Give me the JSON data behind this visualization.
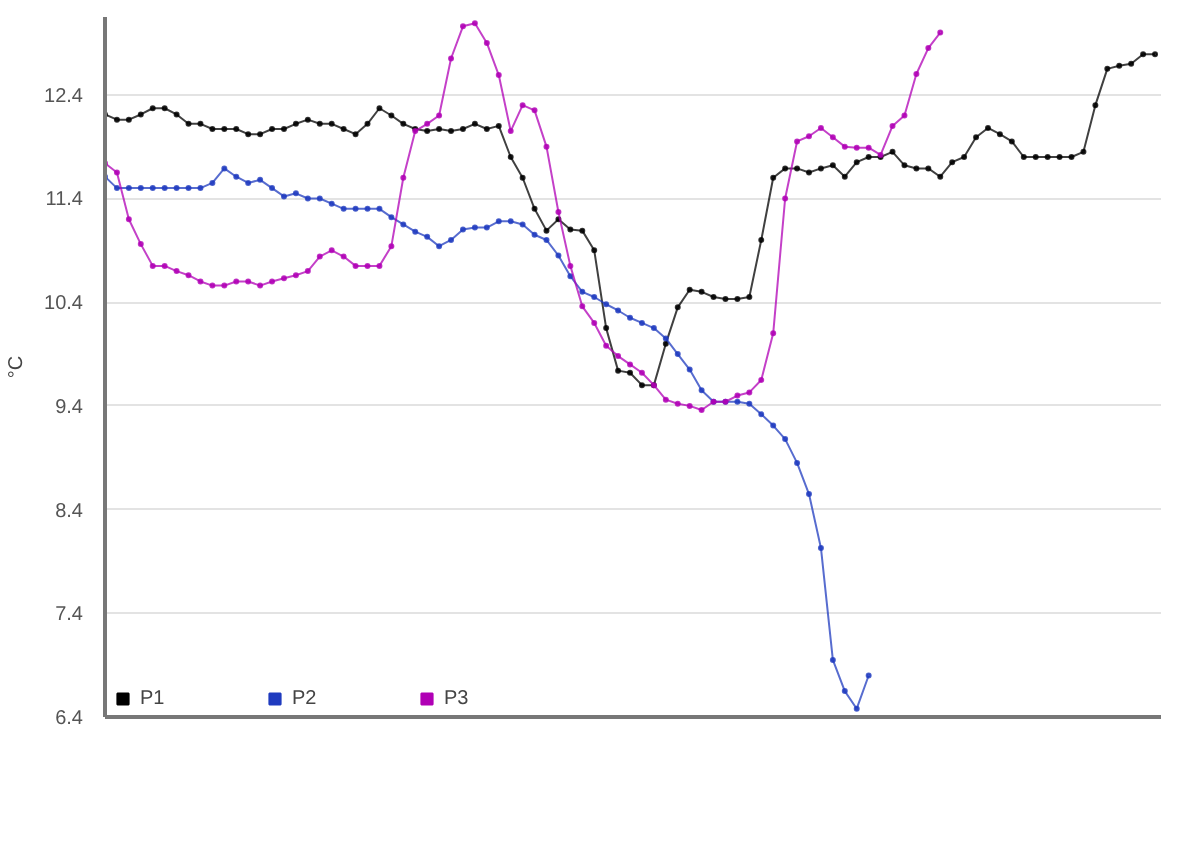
{
  "chart_data": {
    "type": "line",
    "ylabel": "°C",
    "categories": [
      null,
      null,
      null,
      null,
      null,
      null,
      null,
      null,
      null,
      null,
      null,
      null,
      null,
      null,
      null,
      null,
      null,
      null,
      null,
      null,
      null,
      null,
      null,
      null,
      null,
      null,
      null,
      null,
      null,
      null,
      null,
      null,
      null,
      null,
      null,
      null,
      null,
      null,
      null,
      null,
      null,
      null,
      null,
      null,
      null,
      null,
      null,
      null,
      null,
      null,
      null,
      null,
      null,
      null,
      null,
      null,
      null,
      null,
      null,
      null,
      null,
      null,
      null,
      null,
      null,
      null,
      null,
      null,
      null,
      null,
      null,
      null,
      null,
      null,
      null,
      null,
      null,
      null,
      null,
      null,
      null,
      null,
      null,
      null,
      null,
      null,
      null,
      null,
      null
    ],
    "series": [
      {
        "name": "P1",
        "color": "#000000",
        "values": [
          12.21,
          12.16,
          12.16,
          12.21,
          12.27,
          12.27,
          12.21,
          12.12,
          12.12,
          12.07,
          12.07,
          12.07,
          12.02,
          12.02,
          12.07,
          12.07,
          12.12,
          12.16,
          12.12,
          12.12,
          12.07,
          12.02,
          12.12,
          12.27,
          12.2,
          12.12,
          12.07,
          12.05,
          12.07,
          12.05,
          12.07,
          12.12,
          12.07,
          12.1,
          11.8,
          11.6,
          11.3,
          11.09,
          11.2,
          11.1,
          11.09,
          10.9,
          10.15,
          9.74,
          9.72,
          9.6,
          9.6,
          10.0,
          10.35,
          10.52,
          10.5,
          10.45,
          10.43,
          10.43,
          10.45,
          11.0,
          11.6,
          11.69,
          11.69,
          11.65,
          11.69,
          11.72,
          11.61,
          11.75,
          11.8,
          11.8,
          11.85,
          11.72,
          11.69,
          11.69,
          11.61,
          11.75,
          11.8,
          11.99,
          12.08,
          12.02,
          11.95,
          11.8,
          11.8,
          11.8,
          11.8,
          11.8,
          11.85,
          12.3,
          12.65,
          12.68,
          12.7,
          12.79,
          12.79
        ]
      },
      {
        "name": "P2",
        "color": "#1f3bbf",
        "values": [
          11.61,
          11.5,
          11.5,
          11.5,
          11.5,
          11.5,
          11.5,
          11.5,
          11.5,
          11.55,
          11.69,
          11.61,
          11.55,
          11.58,
          11.5,
          11.42,
          11.45,
          11.4,
          11.4,
          11.35,
          11.3,
          11.3,
          11.3,
          11.3,
          11.22,
          11.15,
          11.08,
          11.03,
          10.94,
          11.0,
          11.1,
          11.12,
          11.12,
          11.18,
          11.18,
          11.15,
          11.05,
          11.0,
          10.85,
          10.65,
          10.5,
          10.45,
          10.38,
          10.32,
          10.25,
          10.2,
          10.15,
          10.05,
          9.9,
          9.75,
          9.55,
          9.44,
          9.44,
          9.44,
          9.42,
          9.32,
          9.21,
          9.08,
          8.85,
          8.55,
          8.03,
          6.95,
          6.65,
          6.48,
          6.8,
          null,
          null,
          null,
          null,
          null,
          null,
          null,
          null,
          null,
          null,
          null,
          null,
          null,
          null,
          null,
          null,
          null,
          null,
          null,
          null,
          null,
          null,
          null,
          null
        ]
      },
      {
        "name": "P3",
        "color": "#b000b5",
        "values": [
          11.74,
          11.65,
          11.2,
          10.96,
          10.75,
          10.75,
          10.7,
          10.66,
          10.6,
          10.56,
          10.56,
          10.6,
          10.6,
          10.56,
          10.6,
          10.63,
          10.66,
          10.7,
          10.84,
          10.9,
          10.84,
          10.75,
          10.75,
          10.75,
          10.94,
          11.6,
          12.05,
          12.12,
          12.2,
          12.75,
          13.06,
          13.09,
          12.9,
          12.59,
          12.05,
          12.3,
          12.25,
          11.9,
          11.27,
          10.75,
          10.36,
          10.2,
          9.98,
          9.88,
          9.8,
          9.72,
          9.6,
          9.46,
          9.42,
          9.4,
          9.36,
          9.44,
          9.44,
          9.5,
          9.53,
          9.65,
          10.1,
          11.4,
          11.95,
          12.0,
          12.08,
          11.99,
          11.9,
          11.89,
          11.89,
          11.82,
          12.1,
          12.2,
          12.6,
          12.85,
          13.0,
          null,
          null,
          null,
          null,
          null,
          null,
          null,
          null,
          null,
          null,
          null,
          null,
          null,
          null,
          null,
          null,
          null,
          null
        ]
      }
    ],
    "ylim": [
      6.4,
      13.15
    ],
    "yticks": [
      6.4,
      7.4,
      8.4,
      9.4,
      10.4,
      11.4,
      12.4
    ],
    "grid": "y",
    "legend": "bottom left",
    "tick_labels": "y",
    "marker": "circle",
    "line_style": "solid"
  }
}
